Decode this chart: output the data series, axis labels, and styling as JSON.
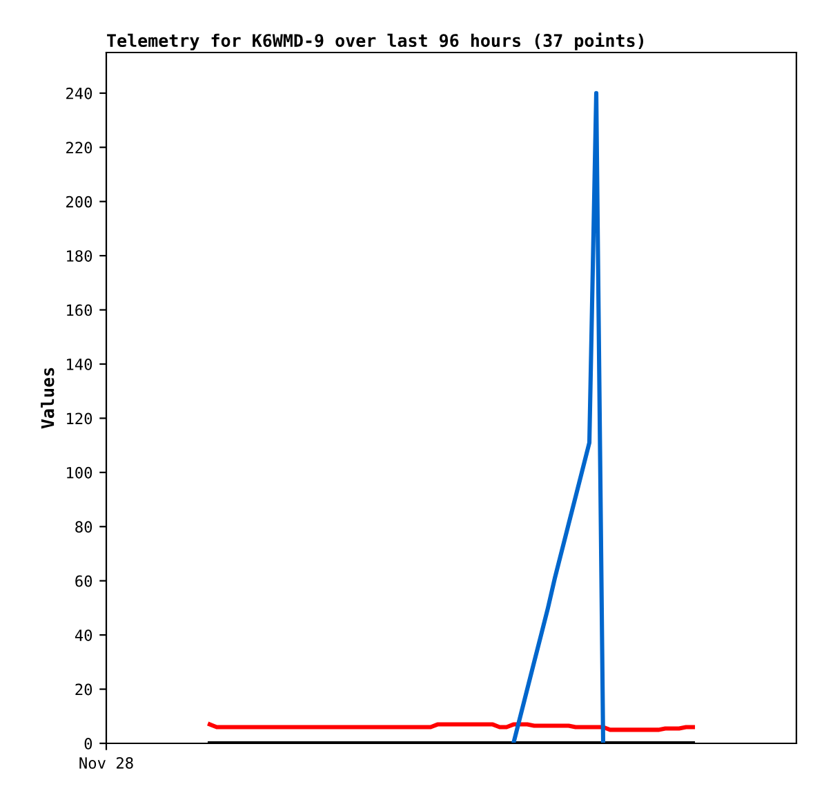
{
  "chart_data": {
    "type": "line",
    "title": "Telemetry for K6WMD-9 over last 96 hours (37 points)",
    "ylabel": "Values",
    "categories": [
      "Nov 28",
      null,
      null,
      null,
      null,
      null,
      null,
      null,
      null,
      null,
      null,
      null,
      null,
      null,
      null,
      null,
      null,
      null,
      null,
      null,
      null,
      null,
      null,
      null,
      null,
      null,
      null,
      null,
      null,
      null,
      null,
      null,
      null,
      null,
      null,
      null,
      null,
      null,
      null,
      null,
      null,
      null,
      null,
      null,
      null,
      null,
      null,
      null,
      null,
      null,
      null,
      null,
      null,
      null,
      null,
      null,
      null,
      null,
      null,
      null,
      null,
      null,
      null,
      null,
      null,
      null,
      null,
      null,
      null,
      null,
      null,
      null,
      null,
      null,
      null,
      null,
      null,
      null,
      null,
      null,
      null,
      null,
      null,
      null,
      null,
      null,
      null,
      null,
      null,
      null,
      null,
      null,
      null,
      null,
      null,
      null,
      null,
      null,
      null,
      null,
      null
    ],
    "ylim": [
      0,
      255
    ],
    "yticks": [
      0,
      20,
      40,
      60,
      80,
      100,
      120,
      140,
      160,
      180,
      200,
      220,
      240
    ],
    "grid": false,
    "legend": false,
    "marker": "none",
    "line_style": "solid",
    "series": [
      {
        "color": "#000000",
        "values": [
          null,
          null,
          null,
          null,
          null,
          null,
          null,
          null,
          null,
          null,
          null,
          null,
          null,
          null,
          null,
          0,
          0,
          0,
          0,
          0,
          0,
          0,
          0,
          0,
          0,
          0,
          0,
          0,
          0,
          0,
          0,
          0,
          0,
          0,
          0,
          0,
          0,
          0,
          0,
          0,
          0,
          0,
          0,
          0,
          0,
          0,
          0,
          0,
          0,
          0,
          0,
          0,
          0,
          0,
          0,
          0,
          0,
          0,
          0,
          0,
          0,
          0,
          0,
          0,
          0,
          0,
          0,
          0,
          0,
          0,
          0,
          0,
          0,
          0,
          0,
          0,
          0,
          0,
          0,
          0,
          0,
          0,
          0,
          0,
          0,
          0,
          null,
          null,
          null,
          null,
          null,
          null,
          null,
          null,
          null,
          null,
          null,
          null,
          null,
          null,
          null
        ]
      },
      {
        "color": "#ff0000",
        "values": [
          null,
          null,
          null,
          null,
          null,
          null,
          null,
          null,
          null,
          null,
          null,
          null,
          null,
          null,
          null,
          7,
          6,
          6,
          6,
          6,
          6,
          6,
          6,
          6,
          6,
          6,
          6,
          6,
          6,
          6,
          6,
          6,
          6,
          6,
          6,
          6,
          6,
          6,
          6,
          6,
          6,
          6,
          6,
          6,
          6,
          6,
          6,
          6,
          7,
          7,
          7,
          7,
          7,
          7,
          7,
          7,
          7,
          6,
          6,
          7,
          7,
          7,
          6.5,
          6.5,
          6.5,
          6.5,
          6.5,
          6.5,
          6,
          6,
          6,
          6,
          6,
          5,
          5,
          5,
          5,
          5,
          5,
          5,
          5,
          5.5,
          5.5,
          5.5,
          6,
          6,
          null,
          null,
          null,
          null,
          null,
          null,
          null,
          null,
          null,
          null,
          null,
          null,
          null,
          null,
          null
        ]
      },
      {
        "color": "#0066cc",
        "values": [
          null,
          null,
          null,
          null,
          null,
          null,
          null,
          null,
          null,
          null,
          null,
          null,
          null,
          null,
          null,
          null,
          null,
          null,
          null,
          null,
          null,
          null,
          null,
          null,
          null,
          null,
          null,
          null,
          null,
          null,
          null,
          null,
          null,
          null,
          null,
          null,
          null,
          null,
          null,
          null,
          null,
          null,
          null,
          null,
          null,
          null,
          null,
          null,
          null,
          null,
          null,
          null,
          null,
          null,
          null,
          null,
          null,
          null,
          null,
          0,
          10,
          20,
          30,
          40,
          50,
          61,
          71,
          81,
          91,
          101,
          111,
          240,
          0,
          null,
          null,
          null,
          null,
          null,
          null,
          null,
          null,
          null,
          null,
          null,
          null,
          null,
          null,
          null,
          null,
          null,
          null,
          null,
          null,
          null,
          null,
          null,
          null,
          null,
          null,
          null,
          null
        ]
      }
    ]
  }
}
